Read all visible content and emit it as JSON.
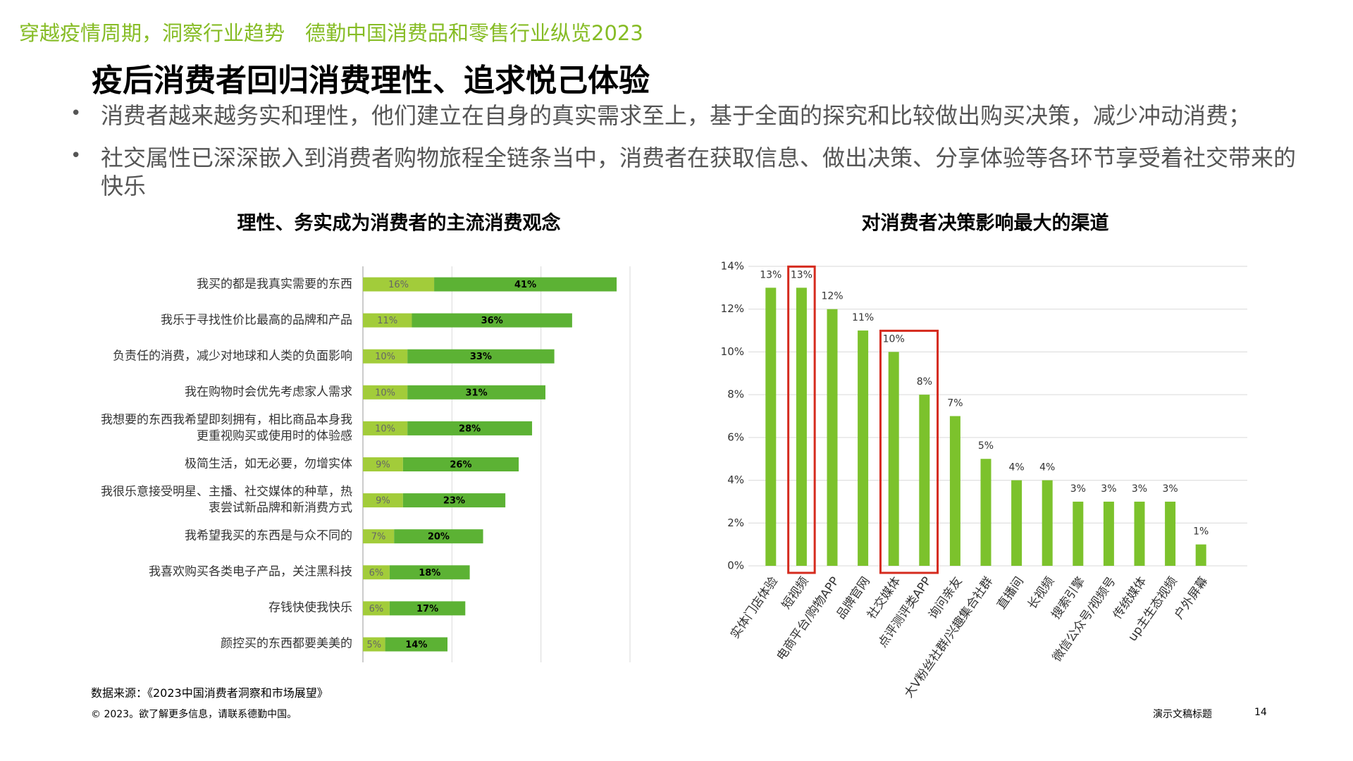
{
  "slide": {
    "header": "穿越疫情周期，洞察行业趋势　德勤中国消费品和零售行业纵览2023",
    "title": "疫后消费者回归消费理性、追求悦己体验",
    "bullets": [
      "消费者越来越务实和理性，他们建立在自身的真实需求至上，基于全面的探究和比较做出购买决策，减少冲动消费；",
      "社交属性已深深嵌入到消费者购物旅程全链条当中，消费者在获取信息、做出决策、分享体验等各环节享受着社交带来的快乐"
    ],
    "source": "数据来源：《2023中国消费者洞察和市场展望》",
    "copyright": "© 2023。欲了解更多信息，请联系德勤中国。",
    "deck_title": "演示文稿标题",
    "page_number": "14"
  },
  "chart_data": [
    {
      "type": "hbar_stacked",
      "title": "理性、务实成为消费者的主流消费观念",
      "categories": [
        "我买的都是我真实需要的东西",
        "我乐于寻找性价比最高的品牌和产品",
        "负责任的消费，减少对地球和人类的负面影响",
        "我在购物时会优先考虑家人需求",
        "我想要的东西我希望即刻拥有，相比商品本身我更重视购买或使用时的体验感",
        "极简生活，如无必要，勿增实体",
        "我很乐意接受明星、主播、社交媒体的种草，热衷尝试新品牌和新消费方式",
        "我希望我买的东西是与众不同的",
        "我喜欢购买各类电子产品，关注黑科技",
        "存钱快使我快乐",
        "颜控买的东西都要美美的"
      ],
      "series": [
        {
          "color": "#a2cc3a",
          "values": [
            16,
            11,
            10,
            10,
            10,
            9,
            9,
            7,
            6,
            6,
            5
          ],
          "value_labels": [
            "16%",
            "11%",
            "10%",
            "10%",
            "10%",
            "9%",
            "9%",
            "7%",
            "6%",
            "6%",
            "5%"
          ]
        },
        {
          "color": "#5cb234",
          "values": [
            41,
            36,
            33,
            31,
            28,
            26,
            23,
            20,
            18,
            17,
            14
          ],
          "value_labels": [
            "41%",
            "36%",
            "33%",
            "31%",
            "28%",
            "26%",
            "23%",
            "20%",
            "18%",
            "17%",
            "14%"
          ]
        }
      ],
      "xlim": [
        0,
        60
      ],
      "xticks": [
        0,
        20,
        40,
        60
      ],
      "grid": true
    },
    {
      "type": "bar",
      "title": "对消费者决策影响最大的渠道",
      "categories": [
        "实体门店体验",
        "短视频",
        "电商平台/购物APP",
        "品牌官网",
        "社交媒体",
        "点评测评类APP",
        "询问亲友",
        "大V粉丝社群/兴趣集合社群",
        "直播间",
        "长视频",
        "搜索引擎",
        "微信公众号/视频号",
        "传统媒体",
        "up主生态视频",
        "户外屏幕"
      ],
      "values": [
        13,
        13,
        12,
        11,
        10,
        8,
        7,
        5,
        4,
        4,
        3,
        3,
        3,
        3,
        1
      ],
      "value_labels": [
        "13%",
        "13%",
        "12%",
        "11%",
        "10%",
        "8%",
        "7%",
        "5%",
        "4%",
        "4%",
        "3%",
        "3%",
        "3%",
        "3%",
        "1%"
      ],
      "color": "#7cc22c",
      "ylim": [
        0,
        14
      ],
      "yticks": [
        {
          "value": 0,
          "label": "0%"
        },
        {
          "value": 2,
          "label": "2%"
        },
        {
          "value": 4,
          "label": "4%"
        },
        {
          "value": 6,
          "label": "6%"
        },
        {
          "value": 8,
          "label": "8%"
        },
        {
          "value": 10,
          "label": "10%"
        },
        {
          "value": 12,
          "label": "12%"
        },
        {
          "value": 14,
          "label": "14%"
        }
      ],
      "grid": true
    }
  ]
}
